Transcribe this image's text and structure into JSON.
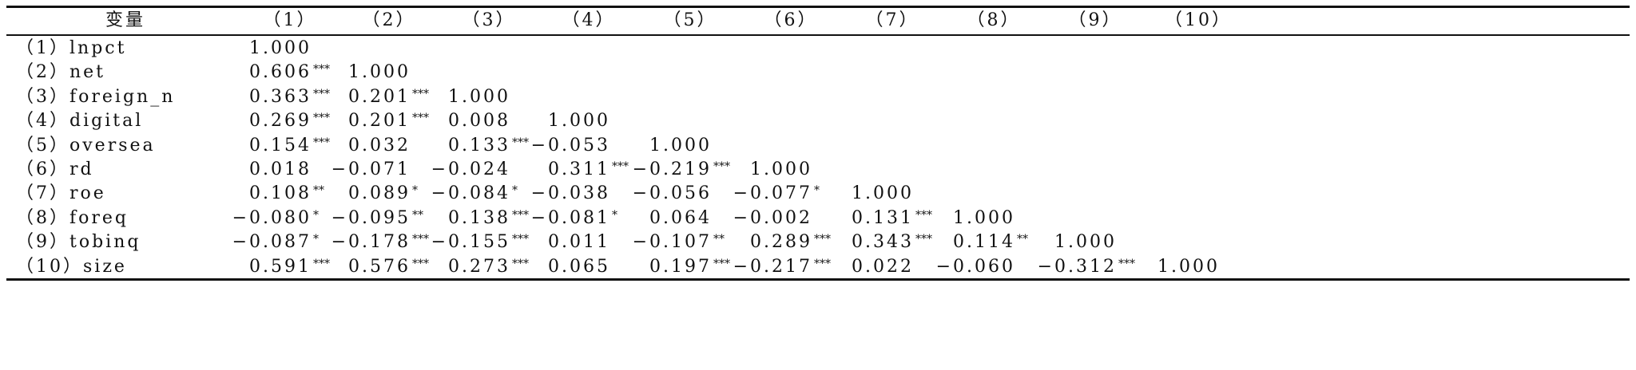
{
  "table": {
    "header": [
      "变量",
      "（1）",
      "（2）",
      "（3）",
      "（4）",
      "（5）",
      "（6）",
      "（7）",
      "（8）",
      "（9）",
      "（10）"
    ],
    "rows": [
      {
        "label": "（1）lnpct",
        "cells": [
          {
            "v": "1.000"
          }
        ]
      },
      {
        "label": "（2）net",
        "cells": [
          {
            "v": "0.606",
            "stars": "***"
          },
          {
            "v": "1.000"
          }
        ]
      },
      {
        "label": "（3）foreign_n",
        "cells": [
          {
            "v": "0.363",
            "stars": "***"
          },
          {
            "v": "0.201",
            "stars": "***"
          },
          {
            "v": "1.000"
          }
        ]
      },
      {
        "label": "（4）digital",
        "cells": [
          {
            "v": "0.269",
            "stars": "***"
          },
          {
            "v": "0.201",
            "stars": "***"
          },
          {
            "v": "0.008"
          },
          {
            "v": "1.000"
          }
        ]
      },
      {
        "label": "（5）oversea",
        "cells": [
          {
            "v": "0.154",
            "stars": "***"
          },
          {
            "v": "0.032"
          },
          {
            "v": "0.133",
            "stars": "***"
          },
          {
            "v": "−0.053"
          },
          {
            "v": "1.000"
          }
        ]
      },
      {
        "label": "（6）rd",
        "cells": [
          {
            "v": "0.018"
          },
          {
            "v": "−0.071"
          },
          {
            "v": "−0.024"
          },
          {
            "v": "0.311",
            "stars": "***"
          },
          {
            "v": "−0.219",
            "stars": "***"
          },
          {
            "v": "1.000"
          }
        ]
      },
      {
        "label": "（7）roe",
        "cells": [
          {
            "v": "0.108",
            "stars": "**"
          },
          {
            "v": "0.089",
            "stars": "*"
          },
          {
            "v": "−0.084",
            "stars": "*"
          },
          {
            "v": "−0.038"
          },
          {
            "v": "−0.056"
          },
          {
            "v": "−0.077",
            "stars": "*"
          },
          {
            "v": "1.000"
          }
        ]
      },
      {
        "label": "（8）foreq",
        "cells": [
          {
            "v": "−0.080",
            "stars": "*"
          },
          {
            "v": "−0.095",
            "stars": "**"
          },
          {
            "v": "0.138",
            "stars": "***"
          },
          {
            "v": "−0.081",
            "stars": "*"
          },
          {
            "v": "0.064"
          },
          {
            "v": "−0.002"
          },
          {
            "v": "0.131",
            "stars": "***"
          },
          {
            "v": "1.000"
          }
        ]
      },
      {
        "label": "（9）tobinq",
        "cells": [
          {
            "v": "−0.087",
            "stars": "*"
          },
          {
            "v": "−0.178",
            "stars": "***"
          },
          {
            "v": "−0.155",
            "stars": "***"
          },
          {
            "v": "0.011"
          },
          {
            "v": "−0.107",
            "stars": "**"
          },
          {
            "v": "0.289",
            "stars": "***"
          },
          {
            "v": "0.343",
            "stars": "***"
          },
          {
            "v": "0.114",
            "stars": "**"
          },
          {
            "v": "1.000"
          }
        ]
      },
      {
        "label": "（10）size",
        "cells": [
          {
            "v": "0.591",
            "stars": "***"
          },
          {
            "v": "0.576",
            "stars": "***"
          },
          {
            "v": "0.273",
            "stars": "***"
          },
          {
            "v": "0.065"
          },
          {
            "v": "0.197",
            "stars": "***"
          },
          {
            "v": "−0.217",
            "stars": "***"
          },
          {
            "v": "0.022"
          },
          {
            "v": "−0.060"
          },
          {
            "v": "−0.312",
            "stars": "***"
          },
          {
            "v": "1.000"
          }
        ]
      }
    ]
  }
}
